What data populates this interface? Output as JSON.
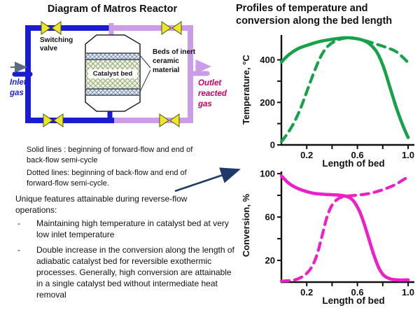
{
  "diagram": {
    "title": "Diagram of Matros Reactor",
    "labels": {
      "switching_valve": "Switching valve",
      "catalyst_bed": "Catalyst bed",
      "inert_beds": "Beds of inert ceramic material",
      "inlet": "Inlet gas",
      "outlet": "Outlet reacted gas"
    },
    "colors": {
      "inlet_pipe": "#1b1bd2",
      "outlet_pipe": "#cb9de6",
      "valve_fill": "#ebe828",
      "valve_stroke": "#55550e",
      "inlet_text": "#2222cc",
      "outlet_text": "#cc0066",
      "inlet_arrow": "#5b6b85",
      "pointer_arrow": "#1f3a68"
    }
  },
  "notes": {
    "solid": "Solid lines : beginning of forward-flow and end of back-flow semi-cycle",
    "dotted": "Dotted lines: beginning of back-flow and end of forward-flow semi-cycle.",
    "heading": "Unique features attainable during reverse-flow operations:",
    "bullet_marker": "-",
    "bullets": [
      "Maintaining high temperature in catalyst bed at very  low inlet temperature",
      "Double increase in the conversion along the length of adiabatic catalyst bed for reversible exothermic processes. Generally, high conversion are attainable in a single catalyst bed without intermediate heat removal"
    ]
  },
  "charts_title": "Profiles of temperature and conversion along the bed length",
  "chart_data": [
    {
      "type": "line",
      "title": "Temperature profile along the bed length",
      "xlabel": "Length of bed",
      "ylabel": "Temperature, °C",
      "color": "#17a24a",
      "xlim": [
        0,
        1.05
      ],
      "ylim": [
        0,
        517
      ],
      "grid": false,
      "legend": "none",
      "xticks": {
        "values": [
          0.2,
          0.4,
          0.6,
          0.8,
          1.0
        ],
        "labels": [
          "0.2",
          "",
          "0.6",
          "",
          "1.0"
        ]
      },
      "yticks": {
        "values": [
          0,
          100,
          200,
          300,
          400
        ],
        "labels": [
          "0",
          "",
          "200",
          "",
          "400"
        ]
      },
      "series": [
        {
          "name": "beginning of forward-flow / end of back-flow semi-cycle",
          "style": "solid",
          "points": [
            [
              0,
              390
            ],
            [
              0.06,
              425
            ],
            [
              0.13,
              452
            ],
            [
              0.2,
              468
            ],
            [
              0.3,
              486
            ],
            [
              0.4,
              497
            ],
            [
              0.5,
              504
            ],
            [
              0.58,
              501
            ],
            [
              0.65,
              491
            ],
            [
              0.71,
              468
            ],
            [
              0.76,
              430
            ],
            [
              0.81,
              360
            ],
            [
              0.86,
              265
            ],
            [
              0.91,
              170
            ],
            [
              0.96,
              90
            ],
            [
              1.0,
              35
            ]
          ]
        },
        {
          "name": "beginning of back-flow / end of forward-flow semi-cycle",
          "style": "dashed",
          "points": [
            [
              0,
              15
            ],
            [
              0.05,
              55
            ],
            [
              0.1,
              105
            ],
            [
              0.15,
              170
            ],
            [
              0.2,
              250
            ],
            [
              0.26,
              345
            ],
            [
              0.31,
              415
            ],
            [
              0.36,
              460
            ],
            [
              0.42,
              487
            ],
            [
              0.48,
              500
            ],
            [
              0.54,
              504
            ],
            [
              0.6,
              499
            ],
            [
              0.67,
              489
            ],
            [
              0.75,
              474
            ],
            [
              0.83,
              458
            ],
            [
              0.91,
              437
            ],
            [
              1.0,
              388
            ]
          ]
        }
      ]
    },
    {
      "type": "line",
      "title": "Conversion profile along the bed length",
      "xlabel": "Length of bed",
      "ylabel": "Conversion, %",
      "color": "#ee1fc8",
      "xlim": [
        0,
        1.05
      ],
      "ylim": [
        0,
        102
      ],
      "grid": false,
      "legend": "none",
      "xticks": {
        "values": [
          0.2,
          0.4,
          0.6,
          0.8,
          1.0
        ],
        "labels": [
          "0.2",
          "",
          "0.6",
          "",
          "1.0"
        ]
      },
      "yticks": {
        "values": [
          20,
          40,
          60,
          80,
          100
        ],
        "labels": [
          "20",
          "",
          "60",
          "",
          "100"
        ]
      },
      "series": [
        {
          "name": "beginning of forward-flow / end of back-flow semi-cycle",
          "style": "solid",
          "points": [
            [
              0,
              98
            ],
            [
              0.05,
              92
            ],
            [
              0.1,
              88
            ],
            [
              0.17,
              84.5
            ],
            [
              0.25,
              82
            ],
            [
              0.33,
              81
            ],
            [
              0.42,
              80.5
            ],
            [
              0.5,
              79.5
            ],
            [
              0.56,
              76
            ],
            [
              0.61,
              67
            ],
            [
              0.65,
              55
            ],
            [
              0.69,
              40
            ],
            [
              0.73,
              25
            ],
            [
              0.77,
              13
            ],
            [
              0.81,
              6
            ],
            [
              0.86,
              3
            ],
            [
              0.92,
              2
            ],
            [
              1.0,
              2
            ]
          ]
        },
        {
          "name": "beginning of back-flow / end of forward-flow semi-cycle",
          "style": "dashed",
          "points": [
            [
              0,
              1
            ],
            [
              0.07,
              1.5
            ],
            [
              0.13,
              3
            ],
            [
              0.19,
              7
            ],
            [
              0.24,
              14
            ],
            [
              0.28,
              25
            ],
            [
              0.32,
              42
            ],
            [
              0.36,
              60
            ],
            [
              0.4,
              71
            ],
            [
              0.45,
              77
            ],
            [
              0.5,
              79
            ],
            [
              0.58,
              80
            ],
            [
              0.66,
              81
            ],
            [
              0.74,
              83
            ],
            [
              0.82,
              86
            ],
            [
              0.9,
              90
            ],
            [
              0.95,
              93.5
            ],
            [
              1.0,
              97
            ]
          ]
        }
      ]
    }
  ]
}
